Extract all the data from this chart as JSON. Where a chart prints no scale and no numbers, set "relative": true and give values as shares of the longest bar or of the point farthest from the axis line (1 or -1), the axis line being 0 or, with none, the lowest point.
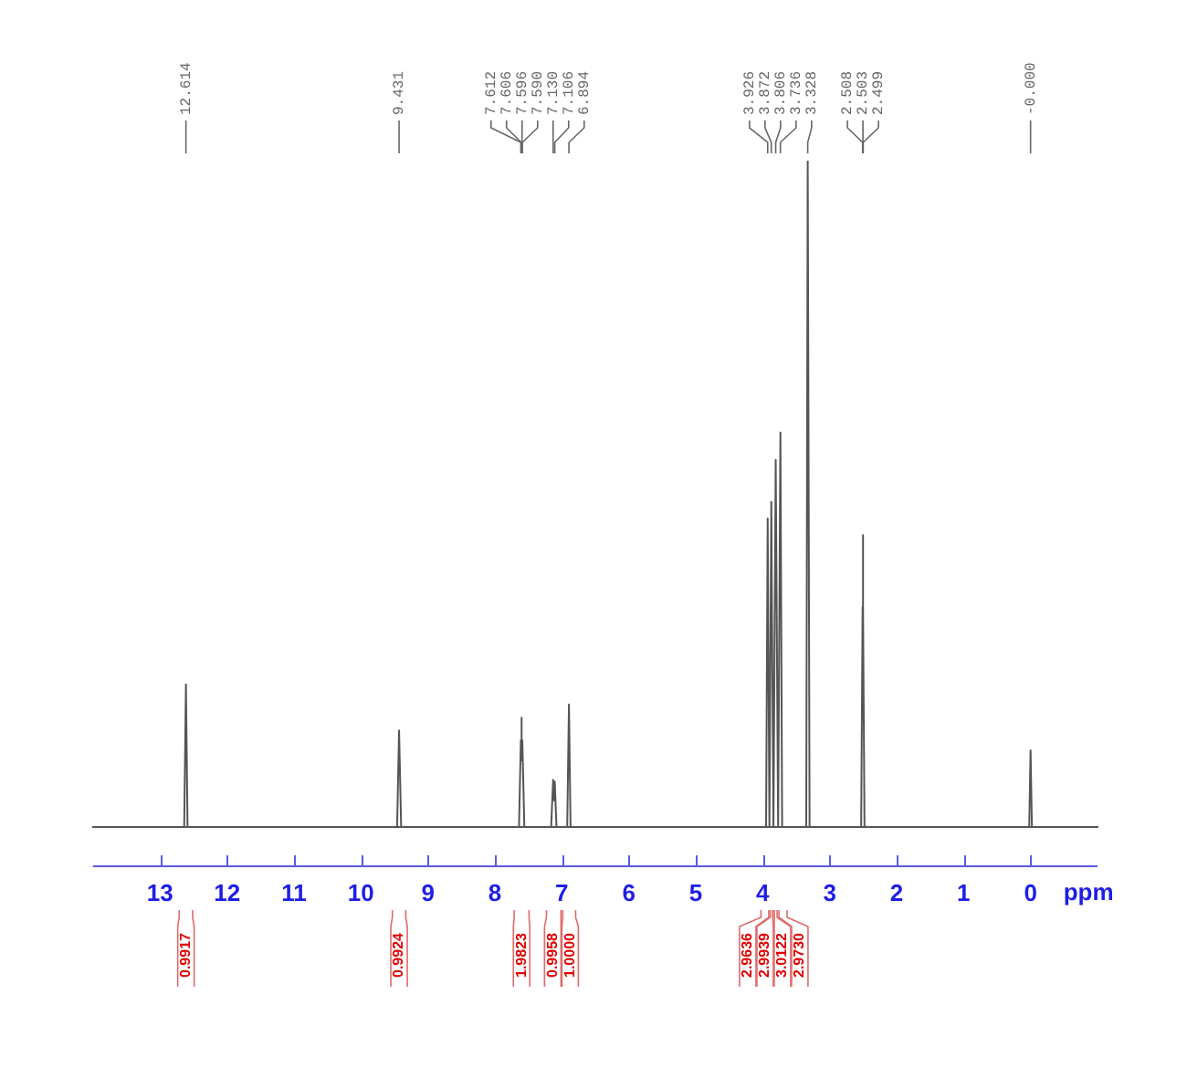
{
  "chart_data": {
    "type": "line",
    "relative": true,
    "xlabel": "ppm",
    "xlim": [
      14,
      -1
    ],
    "xticks": [
      13,
      12,
      11,
      10,
      9,
      8,
      7,
      6,
      5,
      4,
      3,
      2,
      1,
      0
    ],
    "grid": false,
    "legend": false,
    "marker": "none",
    "line_style": "solid",
    "series": [
      {
        "color": "#555555",
        "x": [
          14,
          12.64,
          12.614,
          12.59,
          9.46,
          9.431,
          9.4,
          7.64,
          7.612,
          7.609,
          7.606,
          7.596,
          7.593,
          7.59,
          7.56,
          7.16,
          7.13,
          7.118,
          7.106,
          7.08,
          6.92,
          6.894,
          6.87,
          3.95,
          3.926,
          3.9,
          3.872,
          3.84,
          3.806,
          3.77,
          3.736,
          3.71,
          3.35,
          3.328,
          3.3,
          2.53,
          2.508,
          2.505,
          2.503,
          2.501,
          2.499,
          2.48,
          0.02,
          0,
          -0.02,
          -1
        ],
        "values": [
          0,
          0,
          0.214,
          0,
          0,
          0.145,
          0,
          0,
          0.13,
          0.1,
          0.164,
          0.164,
          0.1,
          0.13,
          0,
          0,
          0.071,
          0.04,
          0.068,
          0,
          0,
          0.184,
          0,
          0,
          0.463,
          0,
          0.488,
          0,
          0.551,
          0,
          0.592,
          0,
          0,
          1,
          0,
          0,
          0.33,
          0.25,
          0.438,
          0.25,
          0.33,
          0,
          0,
          0.115,
          0,
          0
        ]
      }
    ],
    "annotations": [
      "12.614",
      "9.431",
      "7.612",
      "7.606",
      "7.596",
      "7.590",
      "7.130",
      "7.106",
      "6.894",
      "3.926",
      "3.872",
      "3.806",
      "3.736",
      "3.328",
      "2.508",
      "2.503",
      "2.499",
      "-0.000",
      "0.9917",
      "0.9924",
      "1.9823",
      "0.9958",
      "1.0000",
      "2.9636",
      "2.9939",
      "3.0122",
      "2.9730"
    ]
  }
}
